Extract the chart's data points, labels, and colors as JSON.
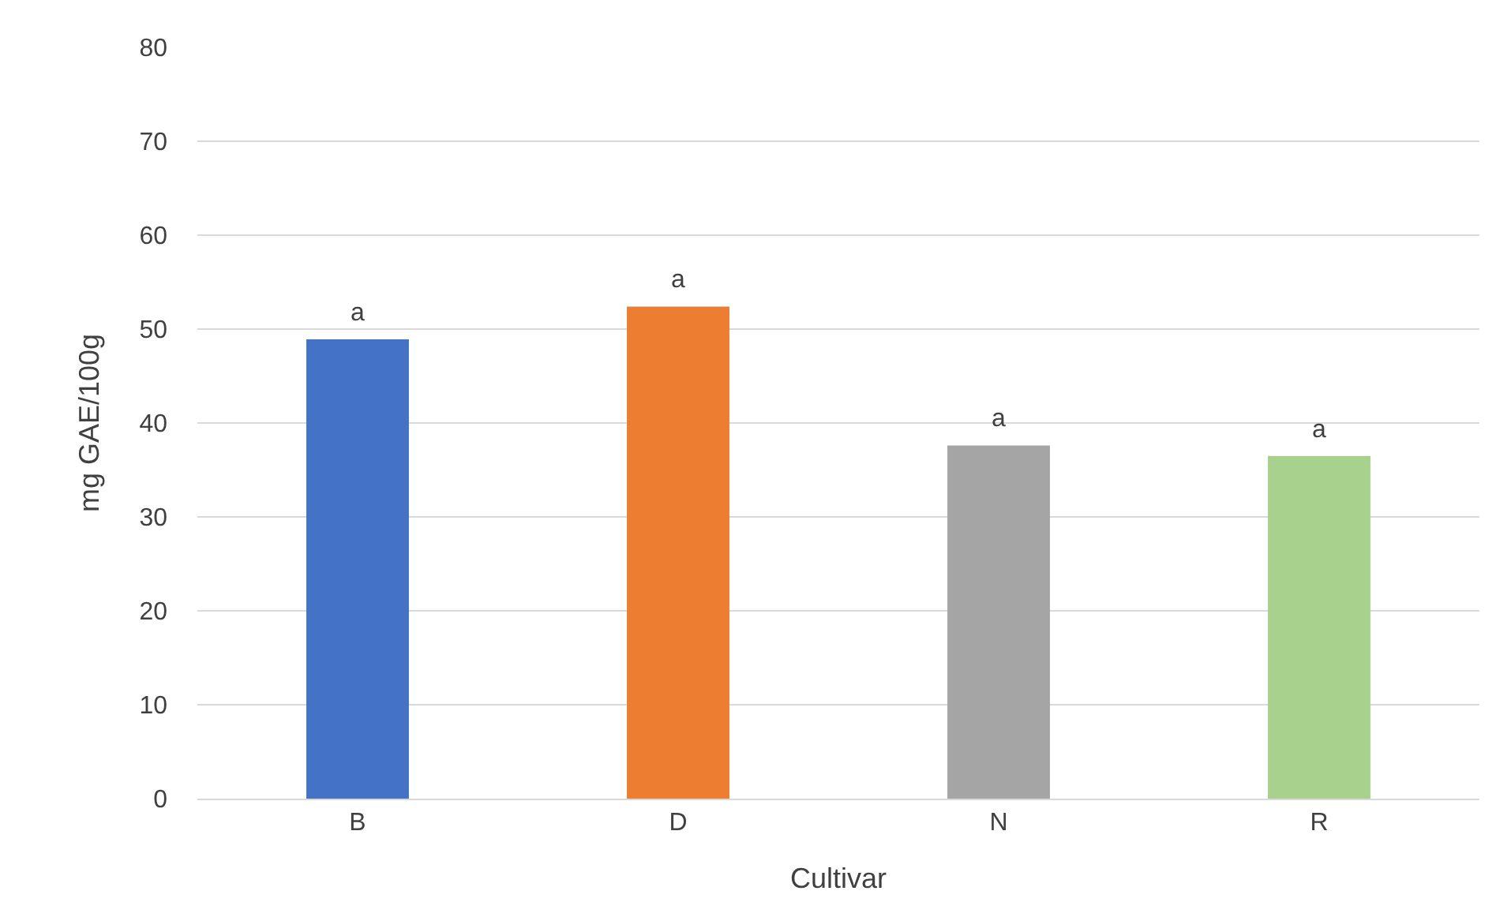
{
  "chart_data": {
    "type": "bar",
    "xlabel": "Cultivar",
    "ylabel": "mg GAE/100g",
    "categories": [
      "B",
      "D",
      "N",
      "R"
    ],
    "values": [
      48.9,
      52.4,
      37.6,
      36.5
    ],
    "colors": [
      "#4472c4",
      "#ed7d31",
      "#a5a5a5",
      "#a9d18e"
    ],
    "ylim": [
      0,
      80
    ],
    "yticks": [
      0,
      10,
      20,
      30,
      40,
      50,
      60,
      70,
      80
    ],
    "grid": "y",
    "legend": false,
    "annotations": [
      {
        "text": "a",
        "x": "B",
        "y": 48.9
      },
      {
        "text": "a",
        "x": "D",
        "y": 52.4
      },
      {
        "text": "a",
        "x": "N",
        "y": 37.6
      },
      {
        "text": "a",
        "x": "R",
        "y": 36.5
      }
    ]
  }
}
